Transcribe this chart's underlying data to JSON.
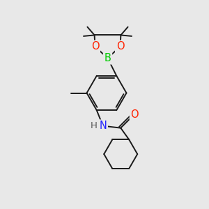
{
  "background_color": "#e8e8e8",
  "bond_color": "#1a1a1a",
  "bond_width": 1.4,
  "atom_colors": {
    "B": "#00cc00",
    "O": "#ff2200",
    "N": "#2222ff",
    "H": "#555555",
    "C": "#1a1a1a"
  },
  "font_size_atom": 10.5,
  "font_size_h": 9.5
}
